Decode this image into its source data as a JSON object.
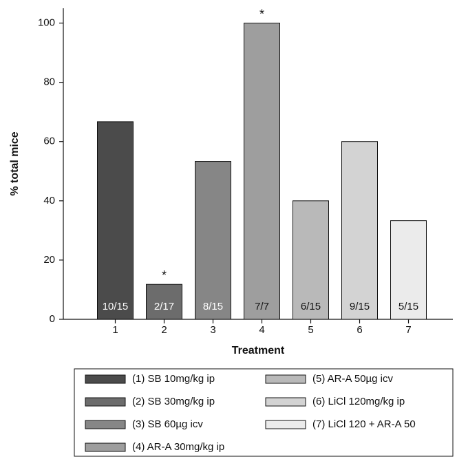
{
  "chart_data": {
    "type": "bar",
    "x_label": "Treatment",
    "y_label": "% total mice",
    "categories": [
      "1",
      "2",
      "3",
      "4",
      "5",
      "6",
      "7"
    ],
    "values": [
      66.7,
      11.8,
      53.3,
      100,
      40,
      60,
      33.3
    ],
    "fractions": [
      "10/15",
      "2/17",
      "8/15",
      "7/7",
      "6/15",
      "9/15",
      "5/15"
    ],
    "significance": [
      null,
      "*",
      null,
      "*",
      null,
      null,
      null
    ],
    "colors": [
      "#4b4b4b",
      "#6c6c6c",
      "#868686",
      "#9e9e9e",
      "#b9b9b9",
      "#d3d3d3",
      "#ebebeb"
    ],
    "fraction_text_colors": [
      "#ffffff",
      "#ffffff",
      "#ffffff",
      "#111111",
      "#111111",
      "#111111",
      "#111111"
    ],
    "legend_labels": [
      "(1) SB 10mg/kg ip",
      "(2) SB 30mg/kg ip",
      "(3) SB 60µg icv",
      "(4) AR-A 30mg/kg ip",
      "(5) AR-A 50µg icv",
      "(6) LiCl 120mg/kg ip",
      "(7) LiCl 120 + AR-A 50"
    ],
    "ylim": [
      0,
      105
    ],
    "yticks": [
      0,
      20,
      40,
      60,
      80,
      100
    ],
    "grid": false
  }
}
